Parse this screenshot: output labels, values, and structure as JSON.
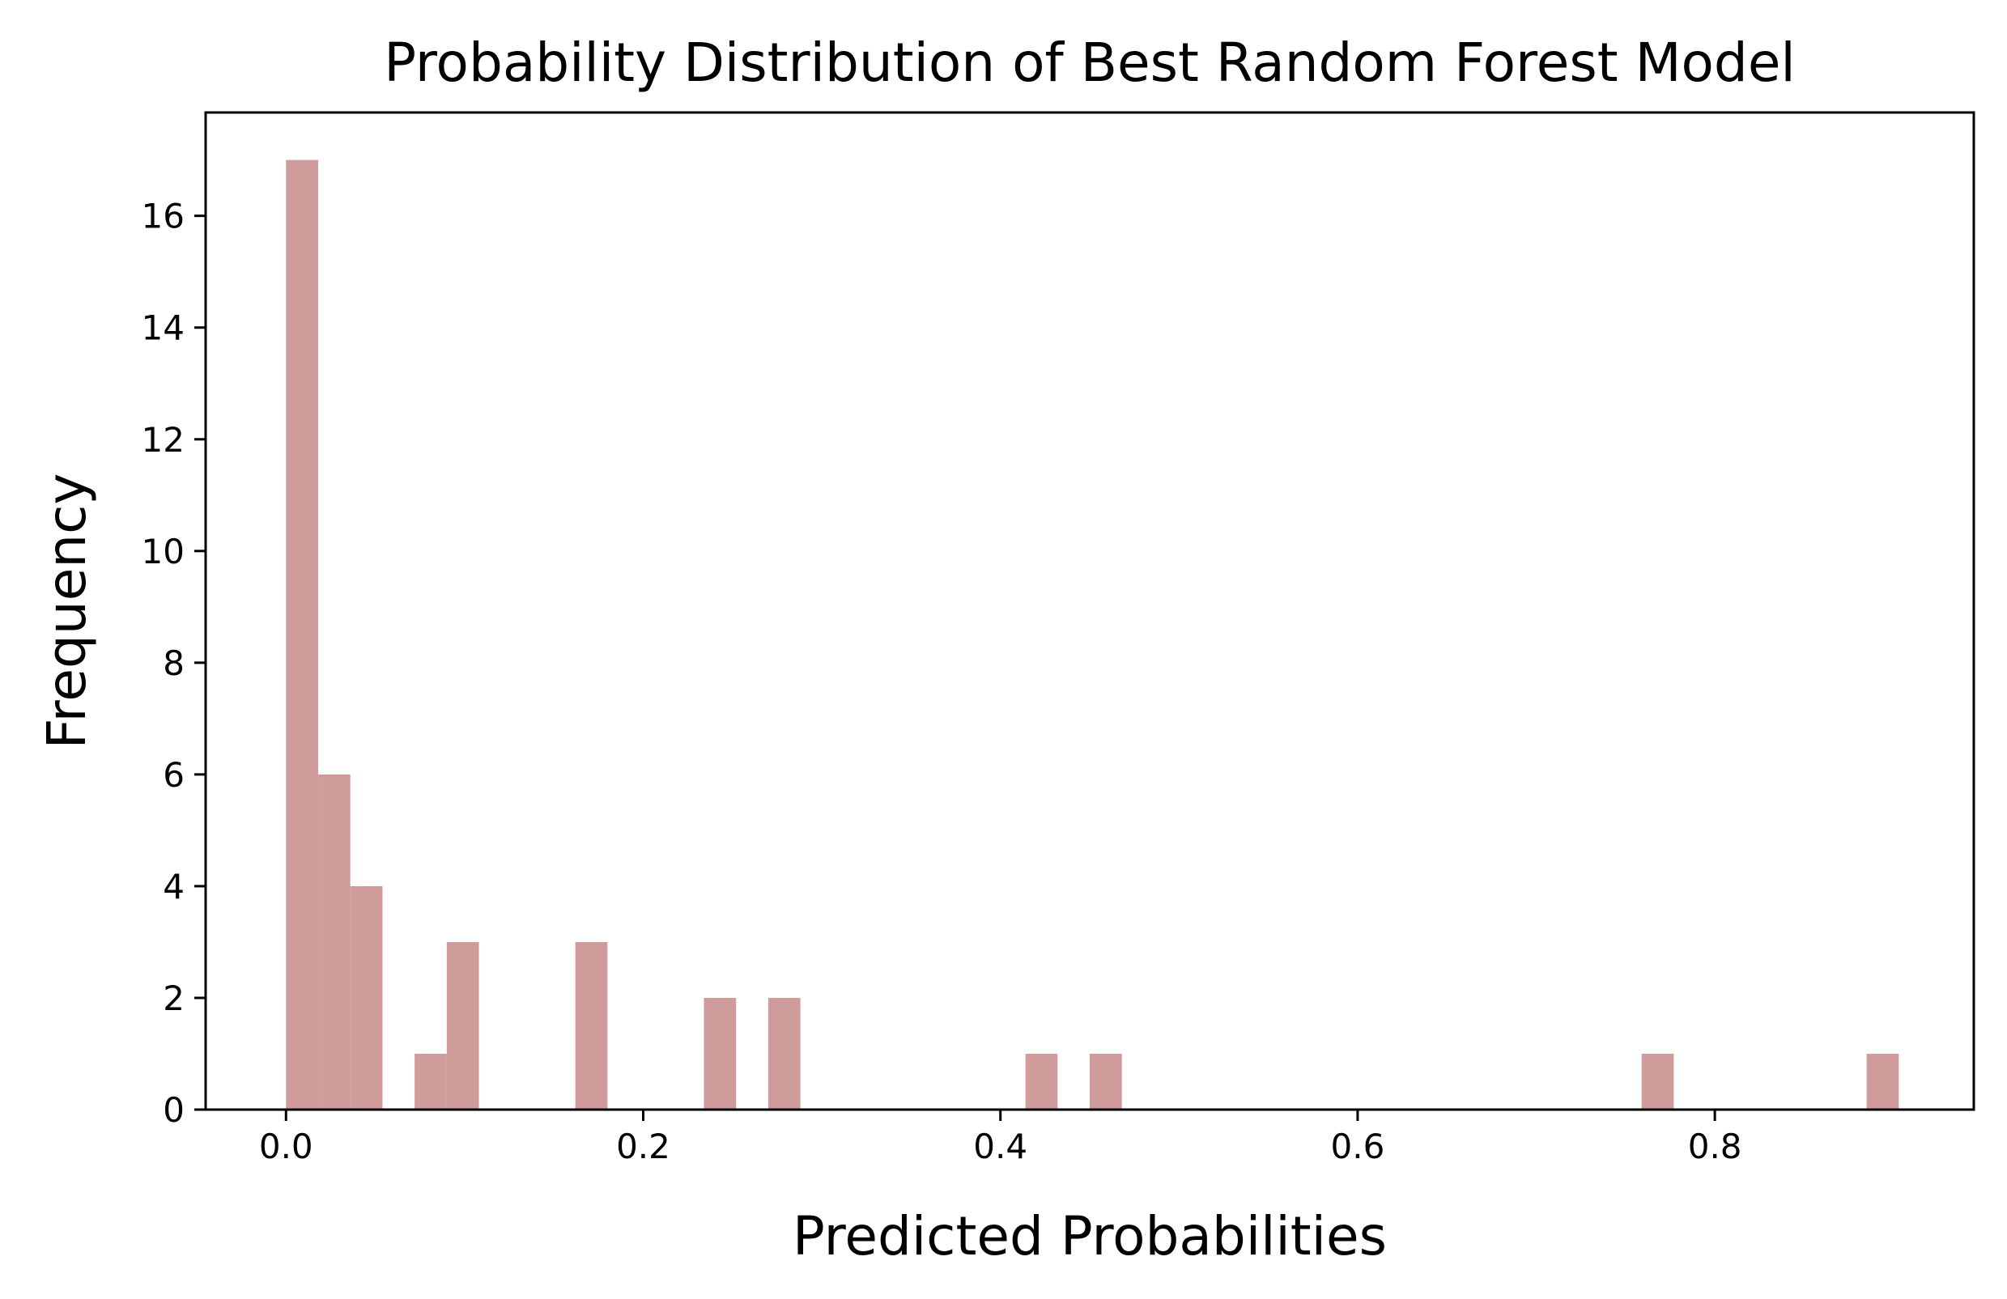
{
  "chart_data": {
    "type": "bar",
    "subtype": "histogram",
    "title": "Probability Distribution of Best Random Forest Model",
    "xlabel": "Predicted Probabilities",
    "ylabel": "Frequency",
    "bar_color": "#c48282",
    "bar_opacity": 0.8,
    "bin_width": 0.018,
    "xlim": [
      -0.045,
      0.945
    ],
    "ylim": [
      0,
      17.85
    ],
    "xticks": [
      0.0,
      0.2,
      0.4,
      0.6,
      0.8
    ],
    "xtick_labels": [
      "0.0",
      "0.2",
      "0.4",
      "0.6",
      "0.8"
    ],
    "yticks": [
      0,
      2,
      4,
      6,
      8,
      10,
      12,
      14,
      16
    ],
    "ytick_labels": [
      "0",
      "2",
      "4",
      "6",
      "8",
      "10",
      "12",
      "14",
      "16"
    ],
    "grid": false,
    "legend": null,
    "bins": [
      {
        "x0": 0.0,
        "x1": 0.018,
        "count": 17
      },
      {
        "x0": 0.018,
        "x1": 0.036,
        "count": 6
      },
      {
        "x0": 0.036,
        "x1": 0.054,
        "count": 4
      },
      {
        "x0": 0.072,
        "x1": 0.09,
        "count": 1
      },
      {
        "x0": 0.09,
        "x1": 0.108,
        "count": 3
      },
      {
        "x0": 0.162,
        "x1": 0.18,
        "count": 3
      },
      {
        "x0": 0.234,
        "x1": 0.252,
        "count": 2
      },
      {
        "x0": 0.27,
        "x1": 0.288,
        "count": 2
      },
      {
        "x0": 0.414,
        "x1": 0.432,
        "count": 1
      },
      {
        "x0": 0.45,
        "x1": 0.468,
        "count": 1
      },
      {
        "x0": 0.759,
        "x1": 0.777,
        "count": 1
      },
      {
        "x0": 0.885,
        "x1": 0.903,
        "count": 1
      }
    ]
  }
}
